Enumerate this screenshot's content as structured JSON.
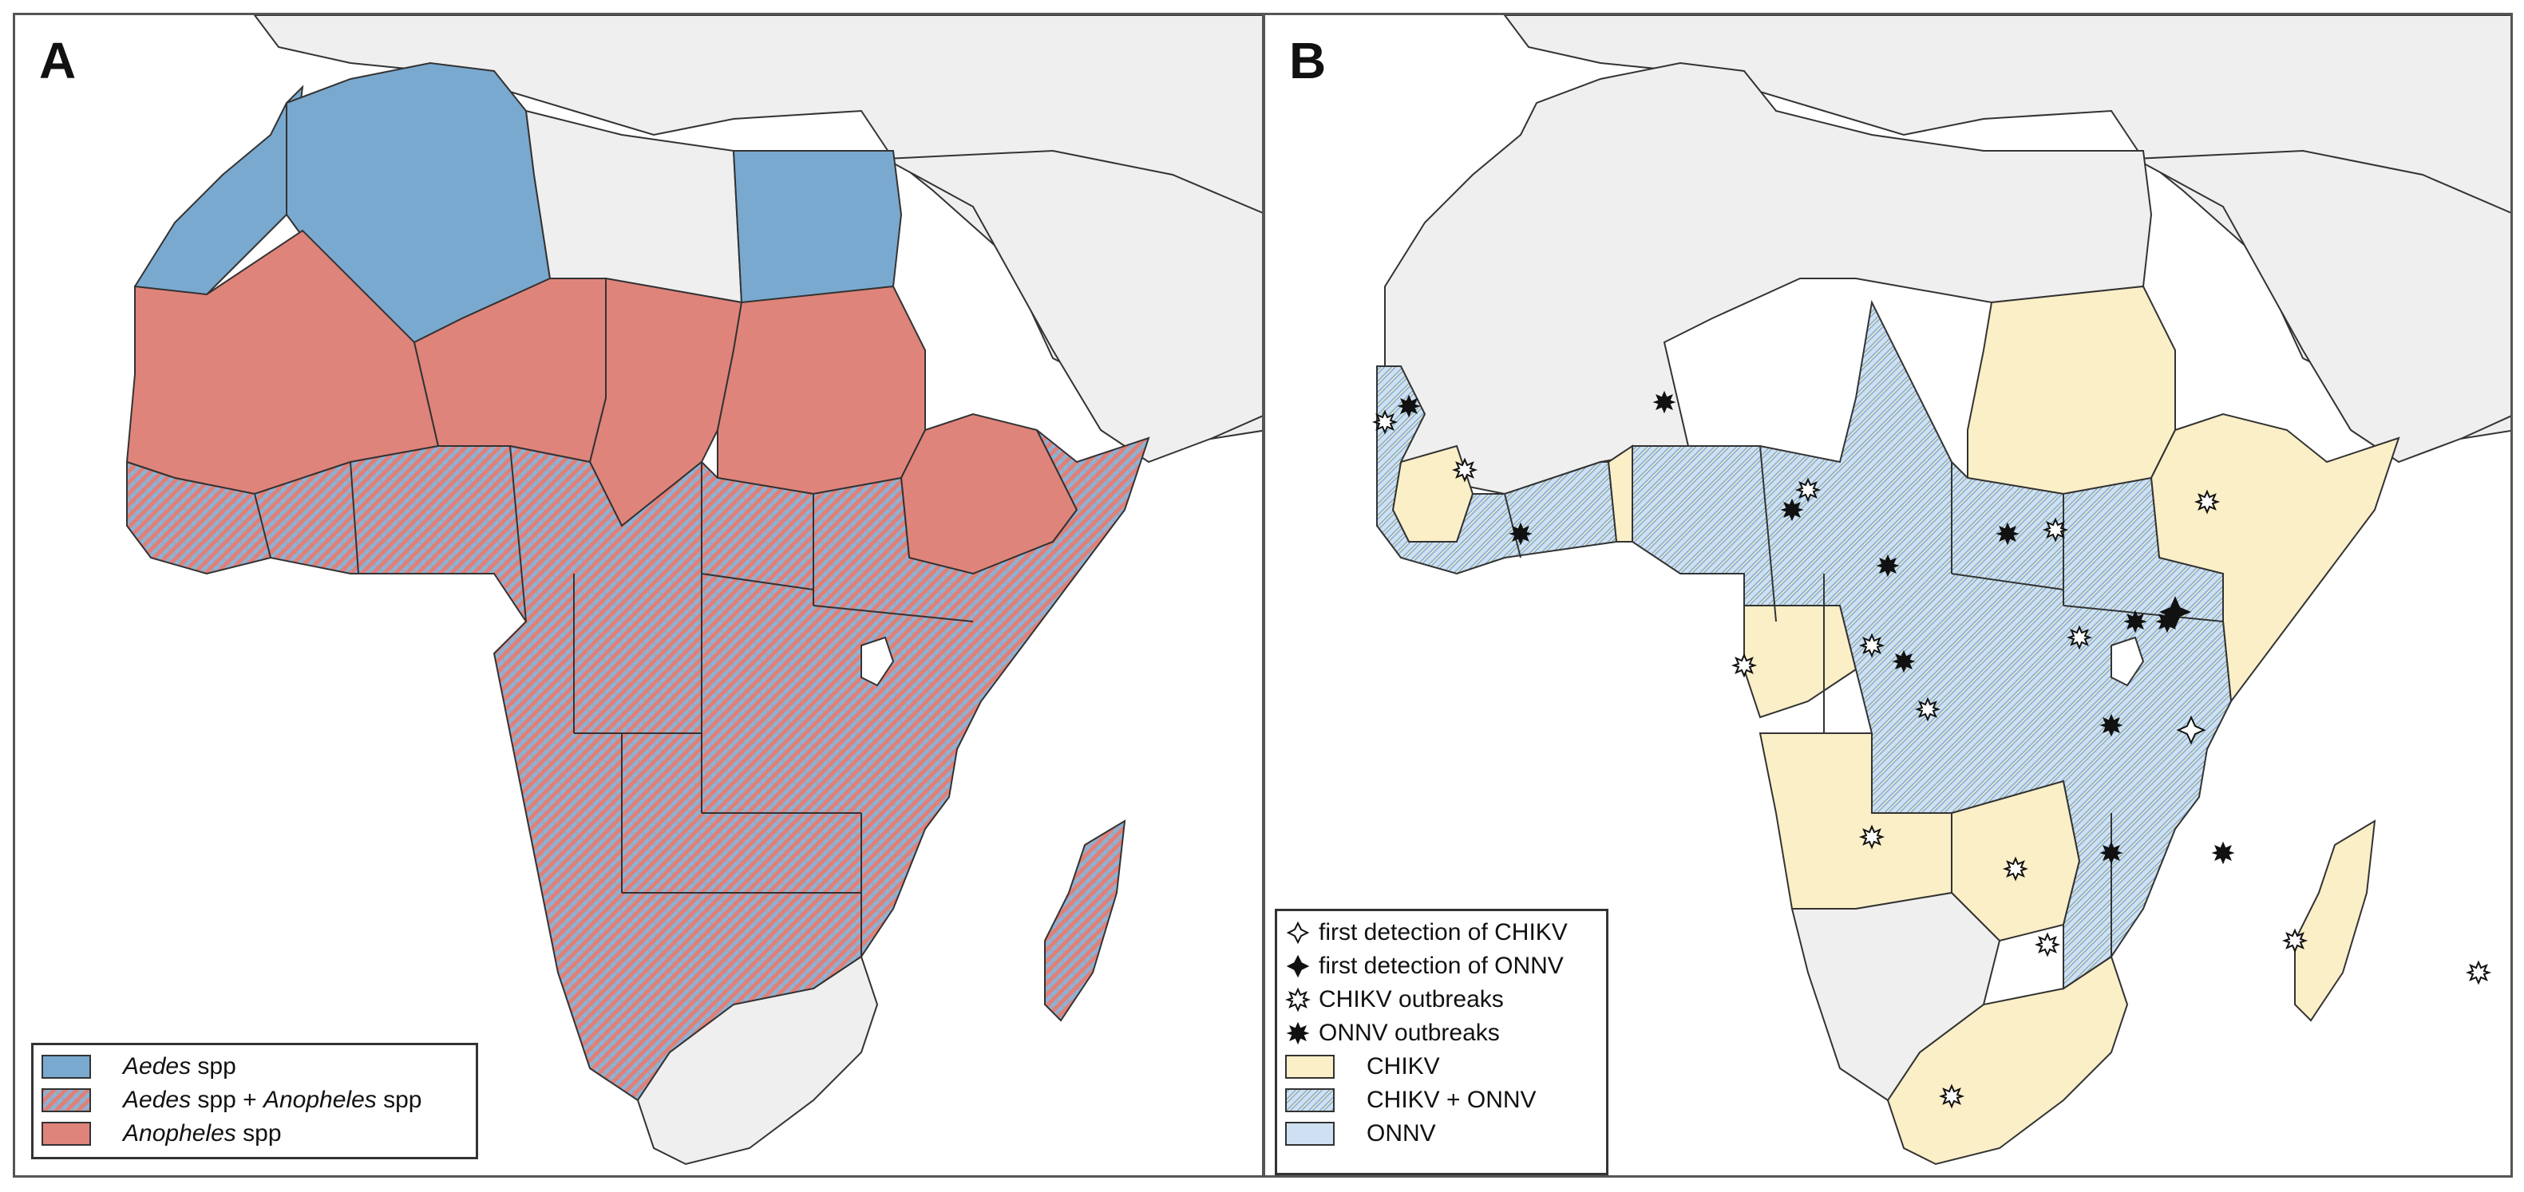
{
  "figure": {
    "panel_a": {
      "label": "A",
      "legend": [
        {
          "category": "aedes",
          "parts": [
            "Aedes",
            " spp"
          ],
          "italic_first": true
        },
        {
          "category": "both",
          "parts": [
            "Aedes",
            " spp + ",
            "Anopheles",
            " spp"
          ]
        },
        {
          "category": "anopheles",
          "parts": [
            "Anopheles",
            " spp"
          ]
        }
      ]
    },
    "panel_b": {
      "label": "B",
      "symbol_legend": [
        {
          "symbol": "open-four-point-star-icon",
          "text": "first detection of CHIKV"
        },
        {
          "symbol": "filled-four-point-star-icon",
          "text": "first detection of ONNV"
        },
        {
          "symbol": "open-burst-icon",
          "text": "CHIKV outbreaks"
        },
        {
          "symbol": "filled-burst-icon",
          "text": "ONNV outbreaks"
        }
      ],
      "area_legend": [
        {
          "category": "chikv",
          "text": "CHIKV"
        },
        {
          "category": "chikv_onnv",
          "text": "CHIKV + ONNV"
        },
        {
          "category": "onnv",
          "text": "ONNV"
        }
      ]
    },
    "colors": {
      "aedes": "#7aa9cf",
      "anopheles": "#df847b",
      "hatch_blue": "#8ab3d6",
      "hatch_red": "#e17f77",
      "chikv": "#fbefc7",
      "onnv": "#cfe0f2",
      "non_endemic": "#efefef",
      "border": "#333333"
    }
  }
}
